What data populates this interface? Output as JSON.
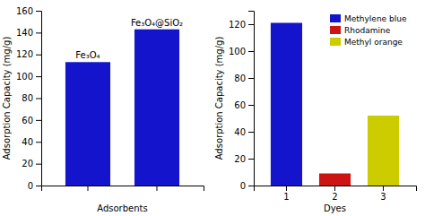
{
  "chart_data": [
    {
      "type": "bar",
      "categories": [
        null,
        null
      ],
      "values": [
        113,
        143
      ],
      "color": "#1414CC",
      "annotations": [
        "Fe₃O₄",
        "Fe₃O₄@SiO₂"
      ],
      "xlabel": "Adsorbents",
      "ylabel": "Adsorption Capacity (mg/g)",
      "ylim": [
        0,
        160
      ],
      "yticks": [
        0,
        20,
        40,
        60,
        80,
        100,
        120,
        140,
        160
      ]
    },
    {
      "type": "bar",
      "categories": [
        "1",
        "2",
        "3"
      ],
      "series": [
        {
          "name": "Methylene blue",
          "color": "#1414CC",
          "values": [
            121,
            null,
            null
          ]
        },
        {
          "name": "Rhodamine",
          "color": "#CC1414",
          "values": [
            null,
            9,
            null
          ]
        },
        {
          "name": "Methyl orange",
          "color": "#CCCC00",
          "values": [
            null,
            null,
            52
          ]
        }
      ],
      "xlabel": "Dyes",
      "ylabel": "Adsorption Capacity (mg/g)",
      "ylim": [
        0,
        130
      ],
      "yticks": [
        0,
        20,
        40,
        60,
        80,
        100,
        120
      ],
      "legend": "upper right"
    }
  ]
}
